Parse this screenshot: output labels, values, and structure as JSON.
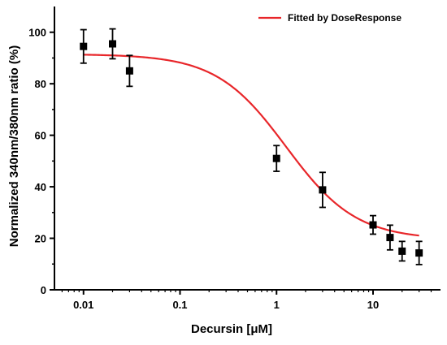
{
  "chart_data": {
    "type": "scatter",
    "title": "",
    "xlabel": "Decursin [μM]",
    "ylabel": "Normalized 340nm/380nm ratio (%)",
    "x_scale": "log",
    "xlim": [
      0.005,
      50
    ],
    "ylim": [
      0,
      110
    ],
    "x_ticks": [
      0.01,
      0.1,
      1,
      10
    ],
    "x_tick_labels": [
      "0.01",
      "0.1",
      "1",
      "10"
    ],
    "y_ticks": [
      0,
      20,
      40,
      60,
      80,
      100
    ],
    "y_tick_labels": [
      "0",
      "20",
      "40",
      "60",
      "80",
      "100"
    ],
    "grid": false,
    "legend_position": "top-right",
    "series": [
      {
        "kind": "points",
        "marker": "square",
        "color": "#000000",
        "points": [
          {
            "x": 0.01,
            "y": 94.5,
            "err": 6.5
          },
          {
            "x": 0.02,
            "y": 95.5,
            "err": 5.8
          },
          {
            "x": 0.03,
            "y": 85.0,
            "err": 6.0
          },
          {
            "x": 1.0,
            "y": 51.0,
            "err": 5.0
          },
          {
            "x": 3.0,
            "y": 38.8,
            "err": 6.8
          },
          {
            "x": 10.0,
            "y": 25.2,
            "err": 3.6
          },
          {
            "x": 15.0,
            "y": 20.3,
            "err": 4.8
          },
          {
            "x": 20.0,
            "y": 15.0,
            "err": 3.8
          },
          {
            "x": 30.0,
            "y": 14.3,
            "err": 4.5
          }
        ]
      },
      {
        "kind": "fit",
        "name": "Fitted by DoseResponse",
        "color": "#e8262a",
        "x_range": [
          0.01,
          30
        ],
        "top": 91.5,
        "bottom": 19.5,
        "log_ec50": 0.1,
        "hill_slope": -1.2
      }
    ]
  }
}
